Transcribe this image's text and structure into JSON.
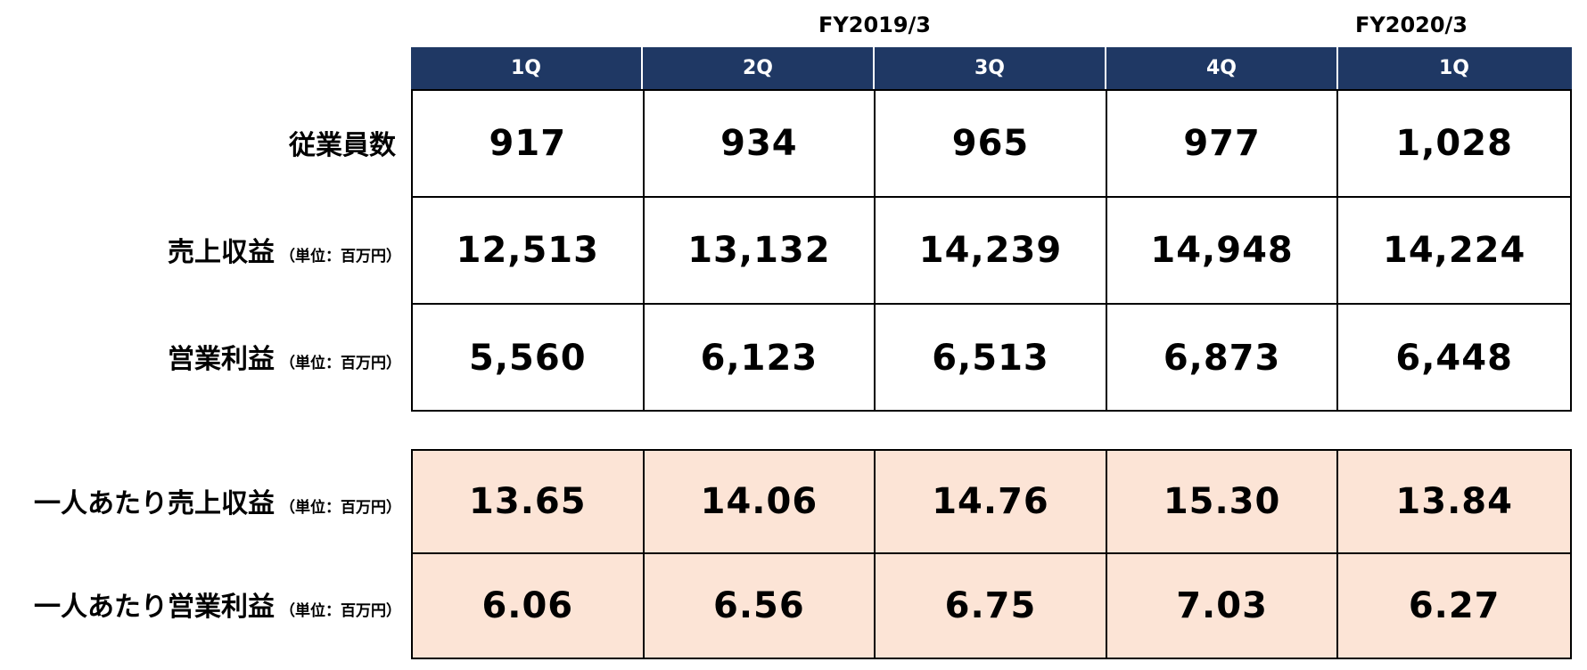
{
  "fiscal_years": [
    {
      "label": "FY2019/3"
    },
    {
      "label": "FY2020/3"
    }
  ],
  "columns": [
    "1Q",
    "2Q",
    "3Q",
    "4Q",
    "1Q"
  ],
  "rows_top": [
    {
      "label": "従業員数",
      "unit": "",
      "values": [
        "917",
        "934",
        "965",
        "977",
        "1,028"
      ]
    },
    {
      "label": "売上収益",
      "unit": "（単位：百万円）",
      "values": [
        "12,513",
        "13,132",
        "14,239",
        "14,948",
        "14,224"
      ]
    },
    {
      "label": "営業利益",
      "unit": "（単位：百万円）",
      "values": [
        "5,560",
        "6,123",
        "6,513",
        "6,873",
        "6,448"
      ]
    }
  ],
  "rows_bottom": [
    {
      "label": "一人あたり売上収益",
      "unit": "（単位：百万円）",
      "values": [
        "13.65",
        "14.06",
        "14.76",
        "15.30",
        "13.84"
      ]
    },
    {
      "label": "一人あたり営業利益",
      "unit": "（単位：百万円）",
      "values": [
        "6.06",
        "6.56",
        "6.75",
        "7.03",
        "6.27"
      ]
    }
  ],
  "colors": {
    "header_bg": "#1f3864",
    "header_text": "#ffffff",
    "highlight_bg": "#fce4d6",
    "border": "#000000"
  }
}
